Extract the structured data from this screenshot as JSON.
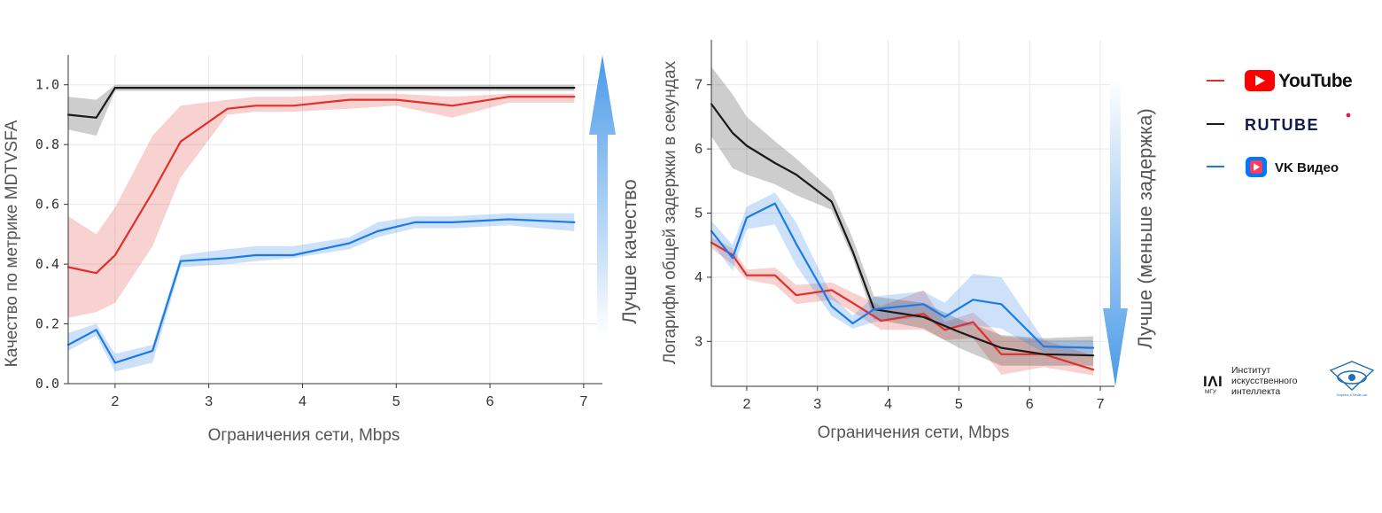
{
  "colors": {
    "youtube": "#e0302b",
    "rutube": "#1a1a1a",
    "vk": "#1a7be8",
    "grid": "#e8e8e8",
    "arrow_top": "#4a9ae8",
    "arrow_bottom": "#ffffff"
  },
  "chart_data": [
    {
      "type": "line",
      "title": "",
      "xlabel": "Ограничения сети, Mbps",
      "ylabel": "Качество по метрике MDTVSFA",
      "xlim": [
        1.5,
        7.2
      ],
      "ylim": [
        0.0,
        1.1
      ],
      "xticks": [
        "2",
        "3",
        "4",
        "5",
        "6",
        "7"
      ],
      "yticks": [
        "0.0",
        "0.2",
        "0.4",
        "0.6",
        "0.8",
        "1.0"
      ],
      "arrow_label": "Лучше качество",
      "arrow_direction": "up",
      "series": [
        {
          "name": "YouTube",
          "color_key": "youtube",
          "x": [
            1.5,
            1.8,
            2.0,
            2.4,
            2.7,
            3.2,
            3.5,
            3.9,
            4.5,
            5.0,
            5.6,
            6.2,
            6.9
          ],
          "y": [
            0.39,
            0.37,
            0.43,
            0.64,
            0.81,
            0.92,
            0.93,
            0.93,
            0.95,
            0.95,
            0.93,
            0.96,
            0.96
          ],
          "lower": [
            0.22,
            0.24,
            0.27,
            0.46,
            0.69,
            0.9,
            0.91,
            0.91,
            0.92,
            0.93,
            0.89,
            0.94,
            0.94
          ],
          "upper": [
            0.56,
            0.5,
            0.59,
            0.83,
            0.93,
            0.95,
            0.96,
            0.96,
            0.97,
            0.97,
            0.96,
            0.97,
            0.97
          ]
        },
        {
          "name": "RUTUBE",
          "color_key": "rutube",
          "x": [
            1.5,
            1.8,
            2.0,
            2.4,
            2.7,
            3.2,
            3.9,
            4.5,
            5.0,
            5.6,
            6.2,
            6.9
          ],
          "y": [
            0.9,
            0.89,
            0.99,
            0.99,
            0.99,
            0.99,
            0.99,
            0.99,
            0.99,
            0.99,
            0.99,
            0.99
          ],
          "lower": [
            0.85,
            0.83,
            0.98,
            0.98,
            0.98,
            0.98,
            0.98,
            0.98,
            0.98,
            0.98,
            0.98,
            0.98
          ],
          "upper": [
            0.96,
            0.95,
            1.0,
            1.0,
            1.0,
            1.0,
            1.0,
            1.0,
            1.0,
            1.0,
            1.0,
            1.0
          ]
        },
        {
          "name": "VK Видео",
          "color_key": "vk",
          "x": [
            1.5,
            1.8,
            2.0,
            2.4,
            2.7,
            3.2,
            3.5,
            3.9,
            4.5,
            4.8,
            5.2,
            5.6,
            6.2,
            6.9
          ],
          "y": [
            0.13,
            0.18,
            0.07,
            0.11,
            0.41,
            0.42,
            0.43,
            0.43,
            0.47,
            0.51,
            0.54,
            0.54,
            0.55,
            0.54
          ],
          "lower": [
            0.11,
            0.16,
            0.04,
            0.07,
            0.39,
            0.4,
            0.41,
            0.42,
            0.45,
            0.49,
            0.52,
            0.52,
            0.53,
            0.51
          ],
          "upper": [
            0.17,
            0.2,
            0.1,
            0.13,
            0.43,
            0.45,
            0.46,
            0.46,
            0.49,
            0.54,
            0.56,
            0.56,
            0.57,
            0.57
          ]
        }
      ]
    },
    {
      "type": "line",
      "title": "",
      "xlabel": "Ограничения сети, Mbps",
      "ylabel": "Логарифм общей задержки в секундах",
      "xlim": [
        1.5,
        7.2
      ],
      "ylim": [
        2.3,
        7.7
      ],
      "xticks": [
        "2",
        "3",
        "4",
        "5",
        "6",
        "7"
      ],
      "yticks": [
        "3",
        "4",
        "5",
        "6",
        "7"
      ],
      "arrow_label": "Лучше (меньше задержка)",
      "arrow_direction": "down",
      "series": [
        {
          "name": "YouTube",
          "color_key": "youtube",
          "x": [
            1.5,
            1.8,
            2.0,
            2.4,
            2.7,
            3.2,
            3.5,
            3.9,
            4.5,
            4.8,
            5.2,
            5.6,
            6.2,
            6.9
          ],
          "y": [
            4.54,
            4.35,
            4.03,
            4.03,
            3.72,
            3.8,
            3.6,
            3.32,
            3.43,
            3.18,
            3.3,
            2.8,
            2.8,
            2.56
          ],
          "lower": [
            4.45,
            4.2,
            3.96,
            3.88,
            3.58,
            3.65,
            3.46,
            3.18,
            3.18,
            3.02,
            3.05,
            2.48,
            2.6,
            2.47
          ],
          "upper": [
            4.62,
            4.45,
            4.12,
            4.15,
            3.88,
            3.92,
            3.76,
            3.55,
            3.8,
            3.3,
            3.45,
            3.08,
            3.02,
            2.78
          ]
        },
        {
          "name": "RUTUBE",
          "color_key": "rutube",
          "x": [
            1.5,
            1.8,
            2.0,
            2.4,
            2.7,
            3.2,
            3.5,
            3.8,
            4.5,
            5.0,
            5.6,
            6.2,
            6.9
          ],
          "y": [
            6.7,
            6.25,
            6.05,
            5.78,
            5.6,
            5.18,
            4.4,
            3.5,
            3.38,
            3.15,
            2.9,
            2.8,
            2.78
          ],
          "lower": [
            6.2,
            5.7,
            5.6,
            5.45,
            5.28,
            5.05,
            4.3,
            3.35,
            3.2,
            2.9,
            2.62,
            2.62,
            2.62
          ],
          "upper": [
            7.28,
            6.85,
            6.5,
            6.12,
            5.85,
            5.35,
            4.6,
            3.7,
            3.6,
            3.35,
            3.1,
            3.05,
            3.08
          ]
        },
        {
          "name": "VK Видео",
          "color_key": "vk",
          "x": [
            1.5,
            1.8,
            2.0,
            2.4,
            2.7,
            3.2,
            3.5,
            3.8,
            4.5,
            4.8,
            5.2,
            5.6,
            6.2,
            6.9
          ],
          "y": [
            4.72,
            4.3,
            4.93,
            5.15,
            4.52,
            3.55,
            3.28,
            3.5,
            3.58,
            3.38,
            3.65,
            3.58,
            2.92,
            2.9
          ],
          "lower": [
            4.55,
            4.1,
            4.75,
            4.82,
            4.18,
            3.4,
            3.2,
            3.3,
            3.38,
            3.2,
            3.25,
            3.2,
            2.82,
            2.78
          ],
          "upper": [
            4.88,
            4.5,
            5.1,
            5.32,
            4.85,
            3.72,
            3.4,
            3.7,
            3.78,
            3.6,
            4.05,
            4.0,
            3.02,
            3.02
          ]
        }
      ]
    }
  ],
  "legend": {
    "items": [
      {
        "name": "YouTube",
        "label": "YouTube",
        "color_key": "youtube"
      },
      {
        "name": "RUTUBE",
        "label": "RUTUBE",
        "color_key": "rutube"
      },
      {
        "name": "VK Видео",
        "label": "VK Видео",
        "color_key": "vk"
      }
    ]
  },
  "institute": {
    "mark": "ІΛІ",
    "sub": "МГУ",
    "name_lines": [
      "Институт",
      "искусственного",
      "интеллекта"
    ]
  },
  "lab": {
    "caption": "Graphics & Media Lab"
  }
}
